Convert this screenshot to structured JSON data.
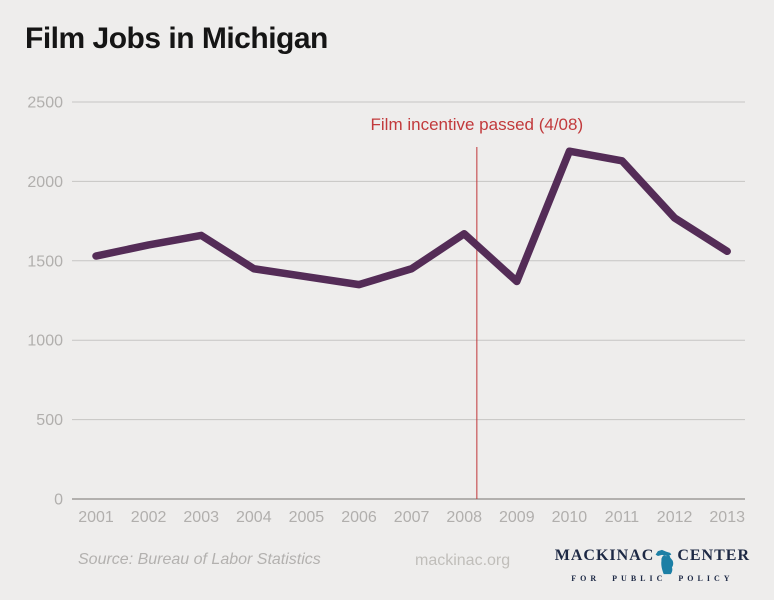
{
  "page": {
    "background_color": "#eeedec"
  },
  "header": {
    "title": "Film Jobs in Michigan"
  },
  "chart_data": {
    "type": "line",
    "title": "Film Jobs in Michigan",
    "categories": [
      "2001",
      "2002",
      "2003",
      "2004",
      "2005",
      "2006",
      "2007",
      "2008",
      "2009",
      "2010",
      "2011",
      "2012",
      "2013"
    ],
    "values": [
      1530,
      1600,
      1660,
      1450,
      1400,
      1350,
      1450,
      1670,
      1370,
      2190,
      2130,
      1770,
      1560
    ],
    "series_name": "Film jobs in Michigan",
    "line_color": "#542c57",
    "ylim": [
      0,
      2500
    ],
    "yticks": [
      0,
      500,
      1000,
      1500,
      2000,
      2500
    ],
    "xlabel": "",
    "ylabel": "",
    "grid": true,
    "legend_position": "none",
    "annotation": {
      "text": "Film incentive passed (4/08)",
      "x_year": 2008.24,
      "color": "#c23a3c"
    },
    "axis_label_color": "#b1afad",
    "gridline_color": "#c6c5c3",
    "baseline_color": "#9d9b99"
  },
  "footer": {
    "source": "Source: Bureau of Labor Statistics",
    "website": "mackinac.org",
    "logo": {
      "name_left": "MACKINAC",
      "name_right": "CENTER",
      "tagline": "FOR PUBLIC POLICY",
      "icon": "michigan-state-icon",
      "text_color": "#1d2945",
      "icon_color": "#1c7fa5"
    }
  }
}
